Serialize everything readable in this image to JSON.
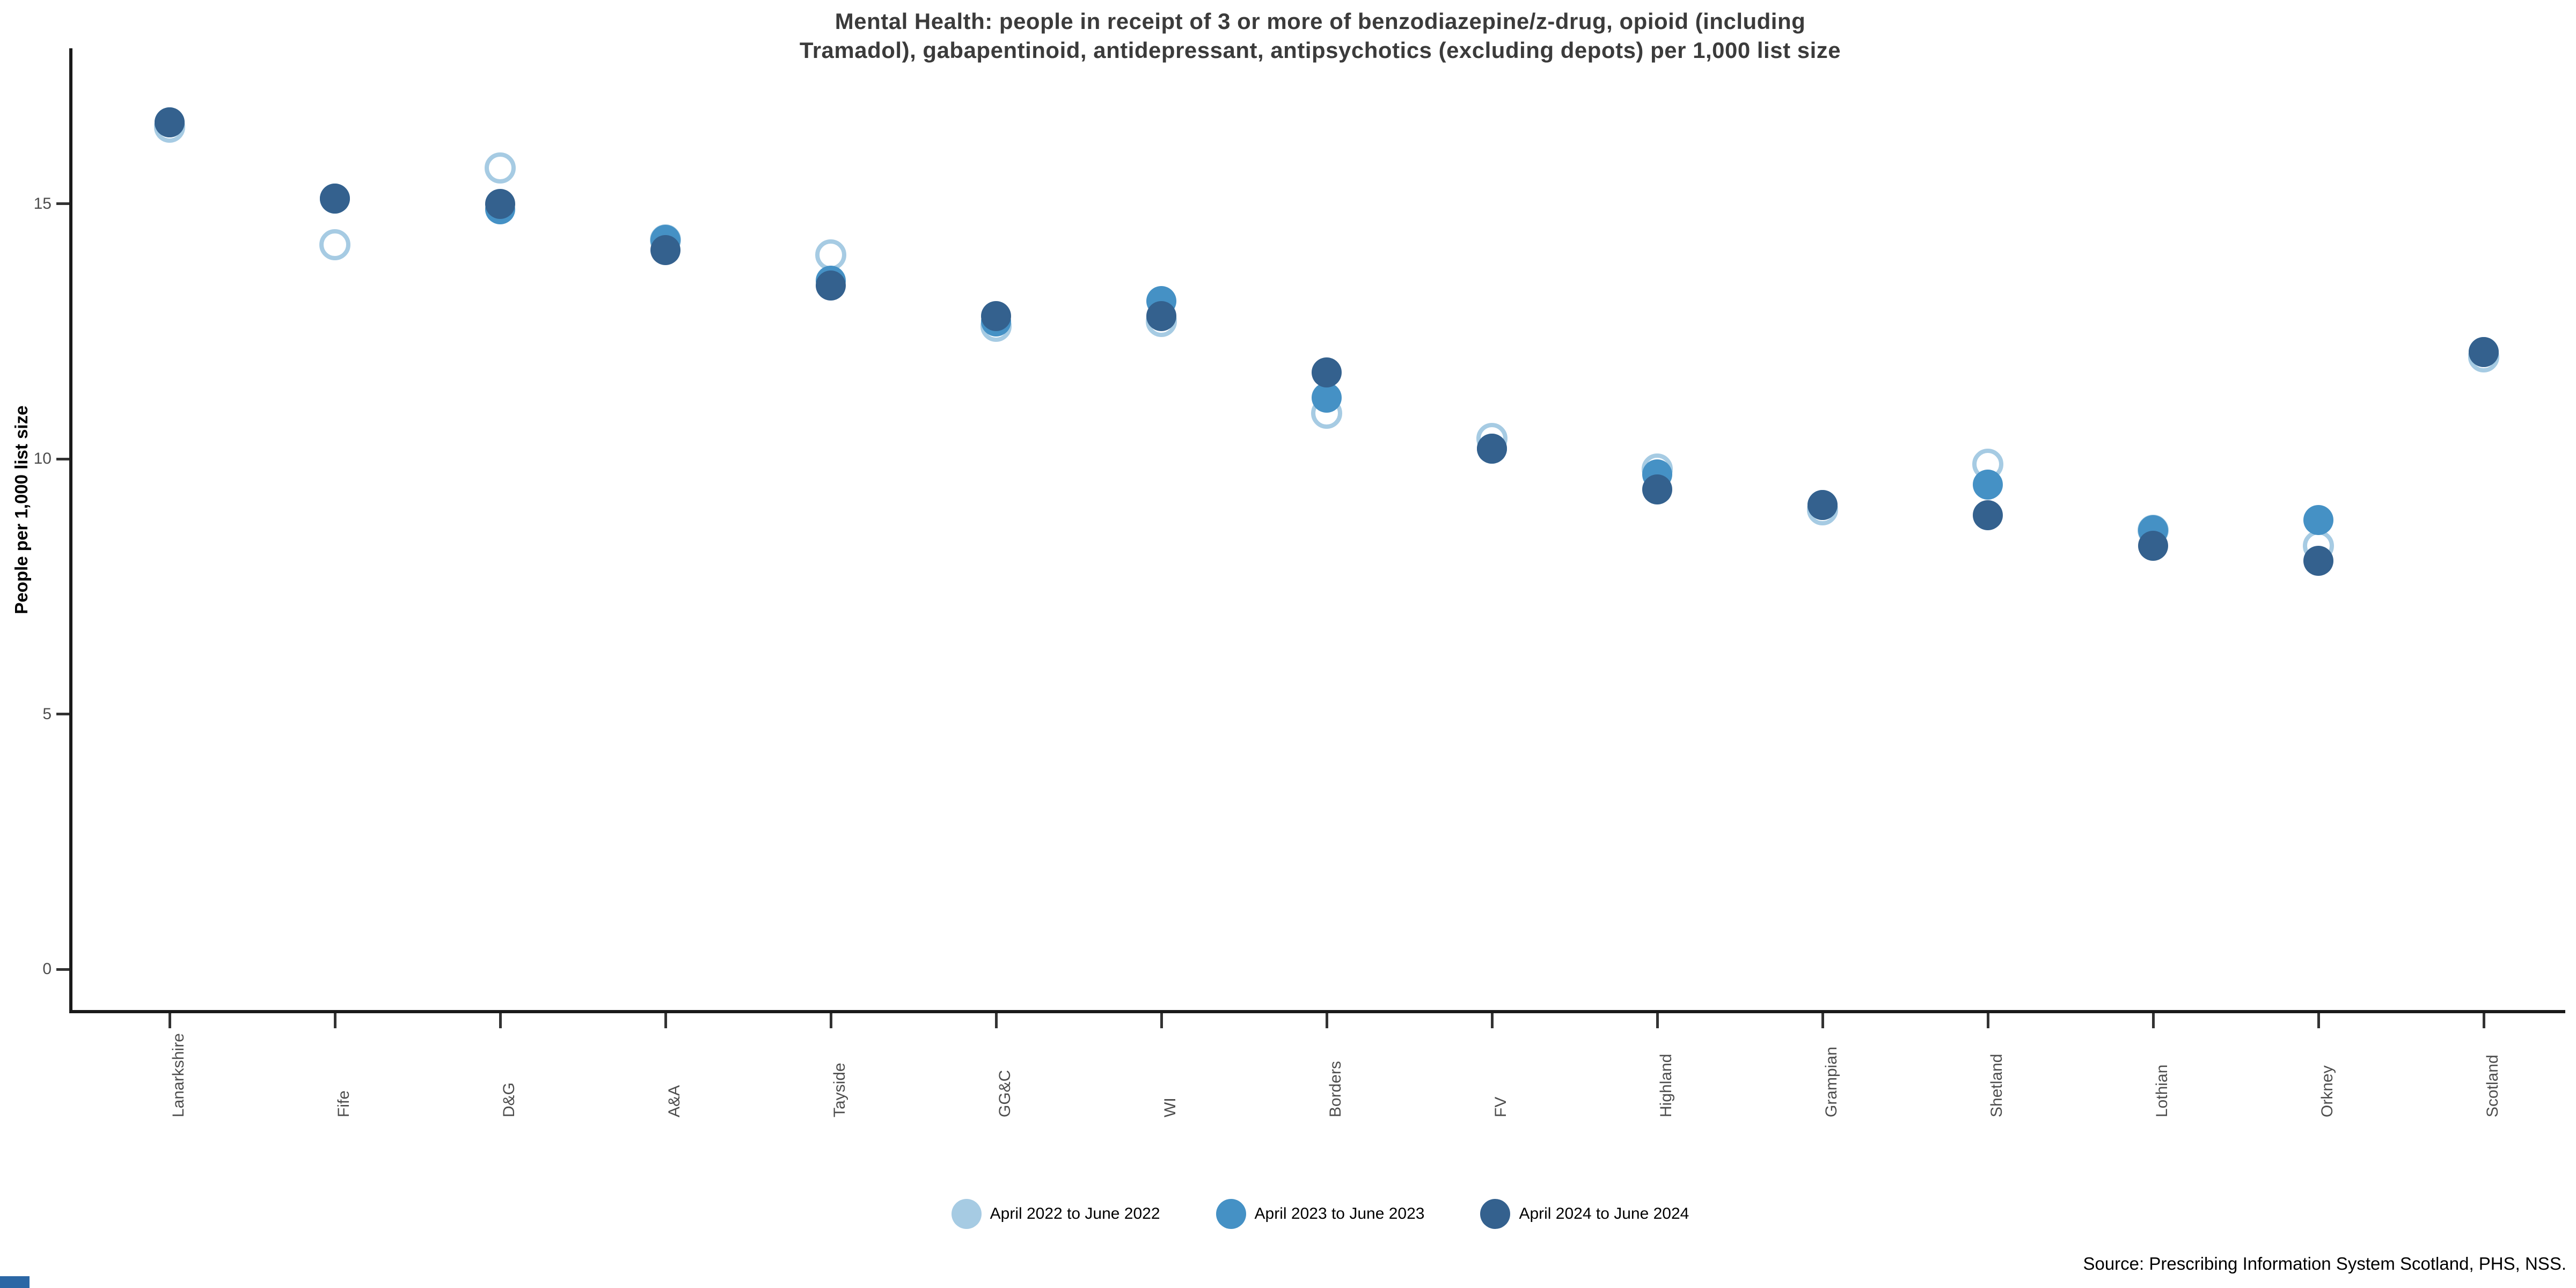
{
  "title": {
    "lines": [
      "Mental Health: people in receipt of 3 or more of benzodiazepine/z-drug, opioid (including",
      "Tramadol), gabapentinoid, antidepressant, antipsychotics (excluding depots) per 1,000 list size"
    ]
  },
  "source": "Source: Prescribing Information System Scotland, PHS, NSS.",
  "chart_data": {
    "type": "scatter",
    "title": "Mental Health: people in receipt of 3 or more of benzodiazepine/z-drug, opioid (including Tramadol), gabapentinoid, antidepressant, antipsychotics (excluding depots) per 1,000 list size",
    "xlabel": "",
    "ylabel": "People per 1,000 list size",
    "ylim": [
      0,
      17.5
    ],
    "yticks": [
      0,
      5,
      10,
      15
    ],
    "grid": false,
    "legend_position": "bottom",
    "categories": [
      "Lanarkshire",
      "Fife",
      "D&G",
      "A&A",
      "Tayside",
      "GG&C",
      "WI",
      "Borders",
      "FV",
      "Highland",
      "Grampian",
      "Shetland",
      "Lothian",
      "Orkney",
      "Scotland"
    ],
    "series": [
      {
        "name": "April 2022 to June 2022",
        "color": "#A6CBE3",
        "marker": "open-circle",
        "values": [
          16.5,
          14.2,
          15.7,
          14.3,
          14.0,
          12.6,
          12.7,
          10.9,
          10.4,
          9.8,
          9.0,
          9.9,
          8.6,
          8.3,
          12.0
        ]
      },
      {
        "name": "April 2023 to June 2023",
        "color": "#4591C5",
        "marker": "filled-circle",
        "values": [
          16.6,
          15.1,
          14.9,
          14.3,
          13.5,
          12.7,
          13.1,
          11.2,
          10.2,
          9.7,
          9.1,
          9.5,
          8.6,
          8.8,
          12.1
        ]
      },
      {
        "name": "April 2024 to June 2024",
        "color": "#34618E",
        "marker": "filled-circle",
        "values": [
          16.6,
          15.1,
          15.0,
          14.1,
          13.4,
          12.8,
          12.8,
          11.7,
          10.2,
          9.4,
          9.1,
          8.9,
          8.3,
          8.0,
          12.1
        ]
      }
    ]
  }
}
